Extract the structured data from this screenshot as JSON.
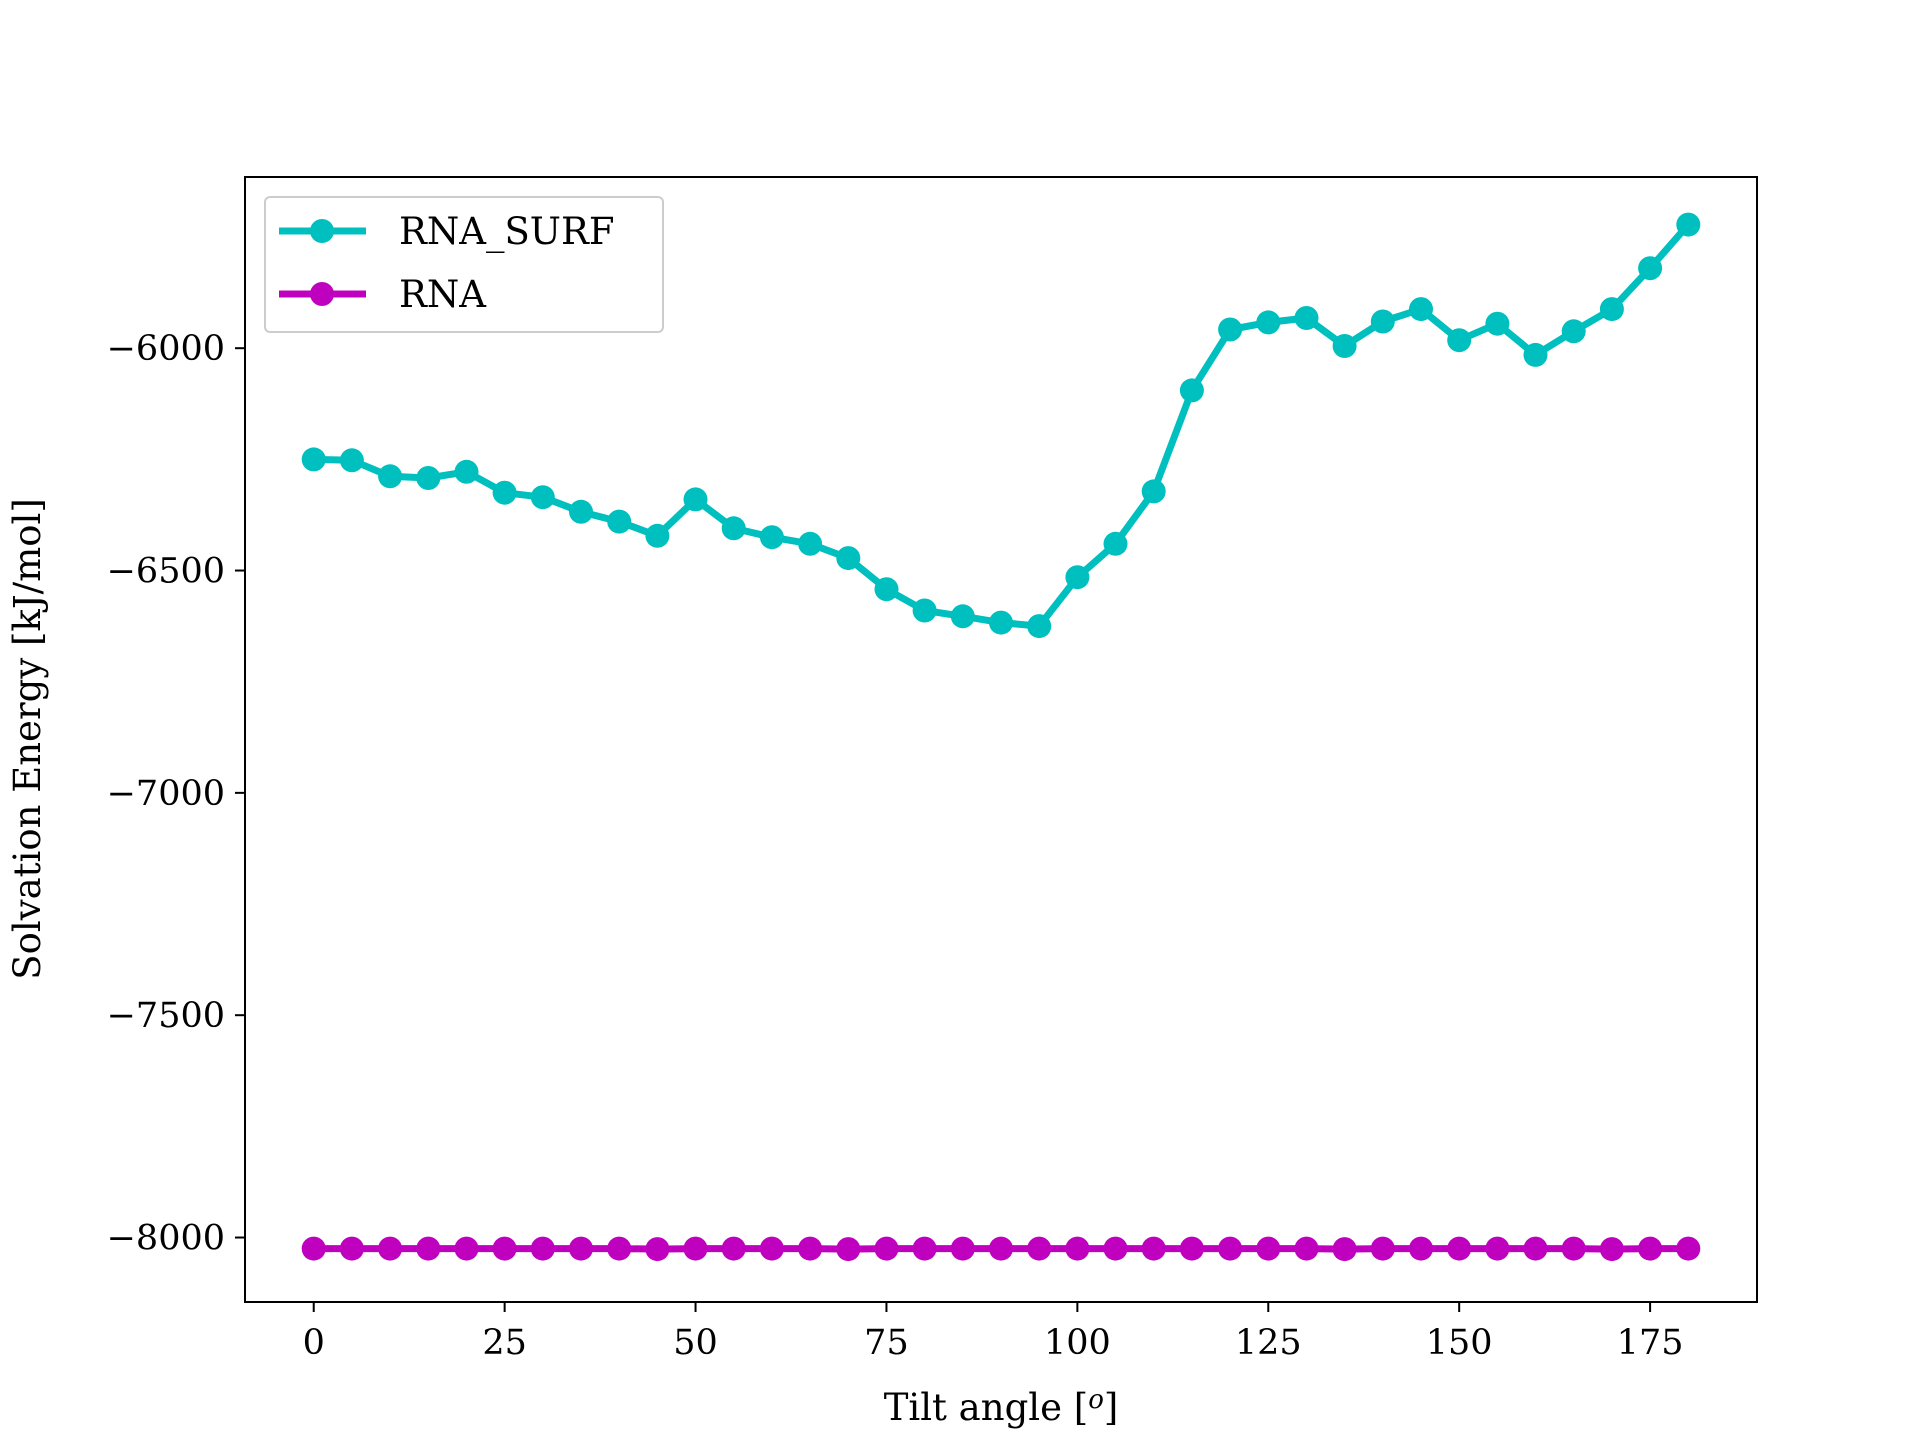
{
  "chart_data": {
    "type": "line",
    "xlabel": "Tilt angle [",
    "xlabel_sup": "o",
    "xlabel_end": "]",
    "ylabel": "Solvation Energy [kJ/mol]",
    "xlim": [
      -9,
      189
    ],
    "ylim": [
      -8145,
      -5615
    ],
    "xticks": [
      0,
      25,
      50,
      75,
      100,
      125,
      150,
      175
    ],
    "yticks": [
      -6000,
      -6500,
      -7000,
      -7500,
      -8000
    ],
    "ytick_labels": [
      "−6000",
      "−6500",
      "−7000",
      "−7500",
      "−8000"
    ],
    "grid": false,
    "legend_position": "top-left",
    "x": [
      0,
      5,
      10,
      15,
      20,
      25,
      30,
      35,
      40,
      45,
      50,
      55,
      60,
      65,
      70,
      75,
      80,
      85,
      90,
      95,
      100,
      105,
      110,
      115,
      120,
      125,
      130,
      135,
      140,
      145,
      150,
      155,
      160,
      165,
      170,
      175,
      180
    ],
    "series": [
      {
        "name": "RNA_SURF",
        "color": "#00bfbf",
        "values": [
          -6250,
          -6252,
          -6288,
          -6292,
          -6278,
          -6325,
          -6335,
          -6368,
          -6390,
          -6422,
          -6340,
          -6405,
          -6425,
          -6440,
          -6472,
          -6542,
          -6590,
          -6603,
          -6617,
          -6625,
          -6515,
          -6440,
          -6322,
          -6095,
          -5958,
          -5942,
          -5932,
          -5995,
          -5940,
          -5912,
          -5982,
          -5945,
          -6015,
          -5962,
          -5912,
          -5820,
          -5722
        ]
      },
      {
        "name": "RNA",
        "color": "#bf00bf",
        "values": [
          -8025,
          -8025,
          -8025,
          -8025,
          -8025,
          -8025,
          -8025,
          -8025,
          -8025,
          -8026,
          -8025,
          -8025,
          -8025,
          -8025,
          -8026,
          -8025,
          -8025,
          -8025,
          -8025,
          -8025,
          -8025,
          -8025,
          -8025,
          -8025,
          -8025,
          -8025,
          -8025,
          -8026,
          -8025,
          -8025,
          -8025,
          -8025,
          -8025,
          -8025,
          -8026,
          -8025,
          -8025
        ]
      }
    ]
  }
}
